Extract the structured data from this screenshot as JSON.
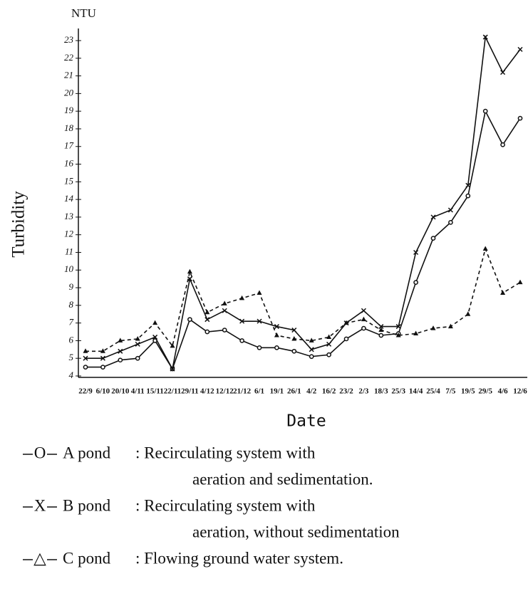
{
  "chart_data": {
    "type": "line",
    "y_unit": "NTU",
    "ylabel": "Turbidity",
    "xlabel": "Date",
    "categories": [
      "22/9",
      "6/10",
      "20/10",
      "4/11",
      "15/11",
      "22/11",
      "29/11",
      "4/12",
      "12/12",
      "21/12",
      "6/1",
      "19/1",
      "26/1",
      "4/2",
      "16/2",
      "23/2",
      "2/3",
      "18/3",
      "25/3",
      "14/4",
      "25/4",
      "7/5",
      "19/5",
      "29/5",
      "4/6",
      "12/6"
    ],
    "ylim": [
      4,
      23
    ],
    "yticks": [
      4,
      5,
      6,
      7,
      8,
      9,
      10,
      11,
      12,
      13,
      14,
      15,
      16,
      17,
      18,
      19,
      20,
      21,
      22,
      23
    ],
    "series": [
      {
        "name": "A pond",
        "marker": "O",
        "description": [
          ": Recirculating system with",
          "aeration and sedimentation."
        ],
        "color": "#111",
        "dash": false,
        "values": [
          4.5,
          4.5,
          4.9,
          5.0,
          6.0,
          4.4,
          7.2,
          6.5,
          6.6,
          6.0,
          5.6,
          5.6,
          5.4,
          5.1,
          5.2,
          6.1,
          6.7,
          6.3,
          6.4,
          9.3,
          11.8,
          12.7,
          14.2,
          19.0,
          17.1,
          18.6
        ]
      },
      {
        "name": "B pond",
        "marker": "X",
        "description": [
          ": Recirculating system with",
          "aeration, without sedimentation"
        ],
        "color": "#111",
        "dash": false,
        "values": [
          5.0,
          5.0,
          5.4,
          5.8,
          6.2,
          4.4,
          9.5,
          7.2,
          7.7,
          7.1,
          7.1,
          6.8,
          6.6,
          5.5,
          5.8,
          7.0,
          7.7,
          6.8,
          6.8,
          11.0,
          13.0,
          13.4,
          14.8,
          23.2,
          21.2,
          22.5
        ]
      },
      {
        "name": "C pond",
        "marker": "△",
        "description": [
          ": Flowing ground water system."
        ],
        "color": "#111",
        "dash": true,
        "values": [
          5.4,
          5.4,
          6.0,
          6.1,
          7.0,
          5.7,
          9.9,
          7.6,
          8.1,
          8.4,
          8.7,
          6.3,
          6.1,
          6.0,
          6.2,
          7.0,
          7.2,
          6.6,
          6.3,
          6.4,
          6.7,
          6.8,
          7.5,
          11.2,
          8.7,
          9.3
        ]
      }
    ]
  }
}
